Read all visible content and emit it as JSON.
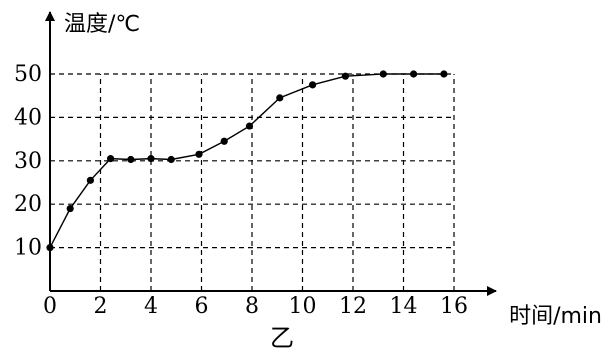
{
  "chart_data": {
    "type": "line",
    "title": "",
    "caption": "乙",
    "xlabel": "时间/min",
    "ylabel": "温度/℃",
    "xlim": [
      0,
      16
    ],
    "ylim": [
      0,
      50
    ],
    "xticks": [
      0,
      2,
      4,
      6,
      8,
      10,
      12,
      14,
      16
    ],
    "yticks": [
      10,
      20,
      30,
      40,
      50
    ],
    "grid": true,
    "grid_style": "dashed",
    "series": [
      {
        "x": [
          0,
          0.8,
          1.6,
          2.4,
          3.2,
          4.0,
          4.8,
          5.9,
          6.9,
          7.9,
          9.1,
          10.4,
          11.7,
          13.2,
          14.4,
          15.6
        ],
        "y": [
          10,
          19,
          25.5,
          30.5,
          30.3,
          30.5,
          30.3,
          31.5,
          34.5,
          38,
          44.5,
          47.5,
          49.5,
          50,
          50,
          50
        ]
      }
    ]
  }
}
